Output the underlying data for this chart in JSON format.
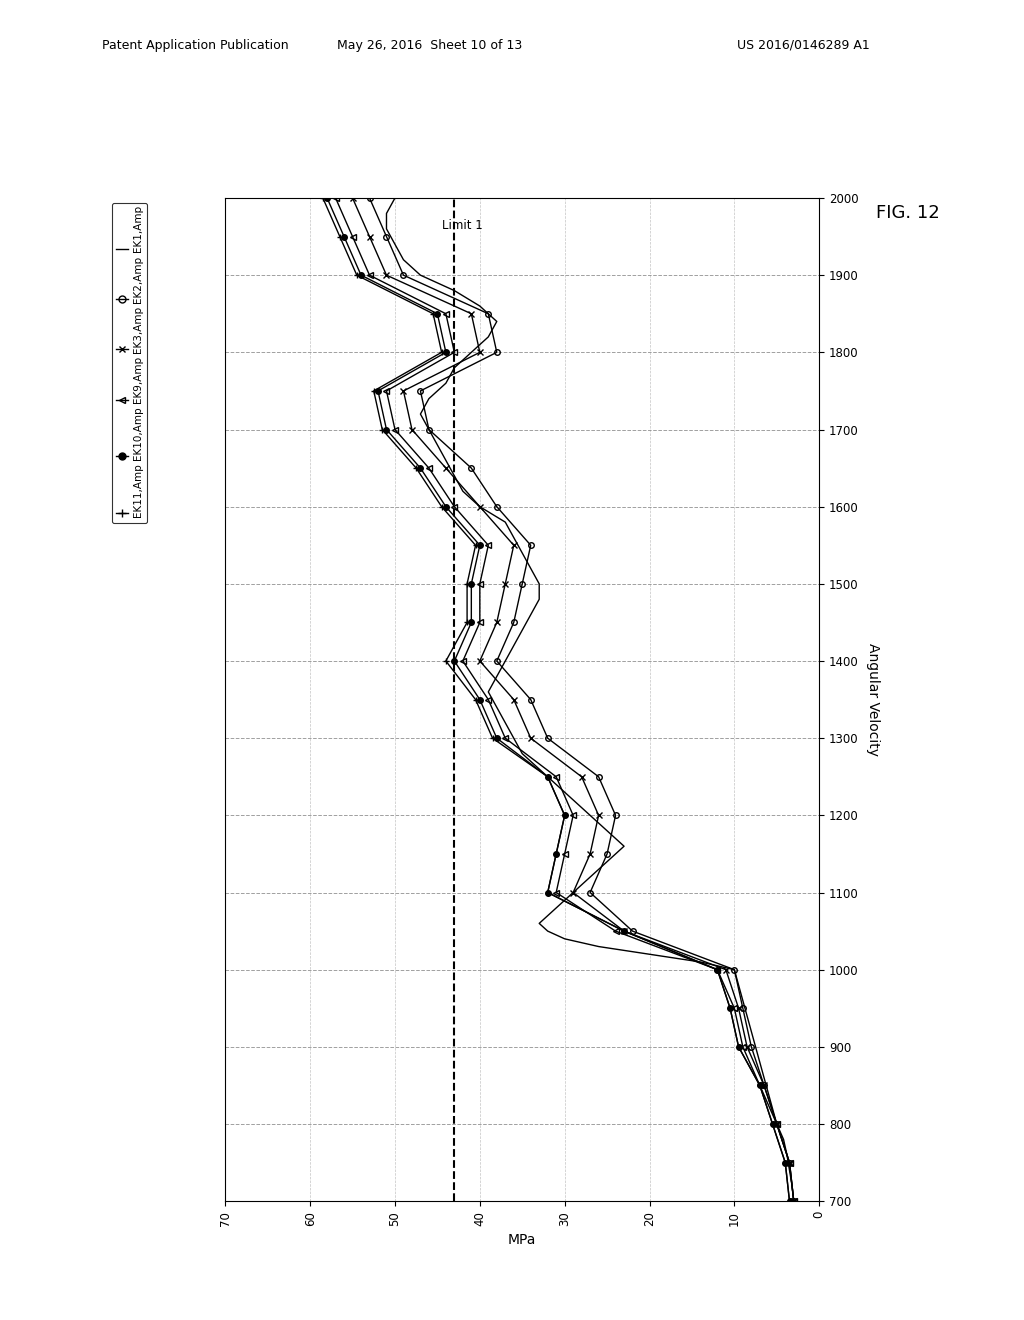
{
  "header1": "Patent Application Publication",
  "header2": "May 26, 2016  Sheet 10 of 13",
  "header3": "US 2016/0146289 A1",
  "fig_label": "FIG. 12",
  "ylabel_label": "MPa",
  "xlabel_label": "Angular Velocity",
  "limit1_val": 43,
  "limit1_text": "Limit 1",
  "ang_vel_ticks": [
    700,
    800,
    900,
    1000,
    1100,
    1200,
    1300,
    1400,
    1500,
    1600,
    1700,
    1800,
    1900,
    2000
  ],
  "mpa_ticks": [
    0,
    10,
    20,
    30,
    40,
    50,
    60,
    70
  ],
  "legend_labels": [
    "EK1,Amp",
    "EK2,Amp",
    "EK3,Amp",
    "EK9,Amp",
    "EK10,Amp",
    "EK11,Amp"
  ],
  "series": [
    {
      "name": "EK1",
      "marker": "none",
      "marker_filled": false,
      "ang_vel": [
        700,
        720,
        740,
        760,
        780,
        800,
        820,
        840,
        860,
        880,
        900,
        920,
        940,
        960,
        980,
        1000,
        1010,
        1020,
        1030,
        1040,
        1050,
        1060,
        1070,
        1080,
        1090,
        1100,
        1110,
        1120,
        1130,
        1140,
        1150,
        1160,
        1170,
        1180,
        1190,
        1200,
        1220,
        1240,
        1260,
        1280,
        1300,
        1320,
        1340,
        1360,
        1380,
        1400,
        1420,
        1440,
        1460,
        1480,
        1500,
        1520,
        1540,
        1560,
        1580,
        1600,
        1620,
        1640,
        1660,
        1680,
        1700,
        1720,
        1740,
        1760,
        1780,
        1800,
        1820,
        1840,
        1860,
        1880,
        1900,
        1920,
        1940,
        1960,
        1980,
        2000
      ],
      "mpa": [
        3,
        3.2,
        3.5,
        3.8,
        4.2,
        5,
        5.5,
        6,
        6.5,
        7,
        7.5,
        8,
        8.5,
        9,
        9.5,
        10,
        14,
        20,
        26,
        30,
        32,
        33,
        32,
        31,
        30,
        29,
        28,
        27,
        26,
        25,
        24,
        23,
        24,
        25,
        26,
        27,
        29,
        31,
        33,
        35,
        36,
        37,
        38,
        39,
        38,
        37,
        36,
        35,
        34,
        33,
        33,
        34,
        35,
        36,
        37,
        40,
        42,
        43,
        44,
        45,
        46,
        47,
        46,
        44,
        43,
        41,
        39,
        38,
        40,
        43,
        47,
        49,
        50,
        51,
        51,
        50
      ]
    },
    {
      "name": "EK2",
      "marker": "o",
      "marker_filled": false,
      "ang_vel": [
        700,
        750,
        800,
        850,
        900,
        950,
        1000,
        1050,
        1100,
        1150,
        1200,
        1250,
        1300,
        1350,
        1400,
        1450,
        1500,
        1550,
        1600,
        1650,
        1700,
        1750,
        1800,
        1850,
        1900,
        1950,
        2000
      ],
      "mpa": [
        3,
        3.5,
        5,
        6.5,
        8,
        9,
        10,
        22,
        27,
        25,
        24,
        26,
        32,
        34,
        38,
        36,
        35,
        34,
        38,
        41,
        46,
        47,
        38,
        39,
        49,
        51,
        53
      ]
    },
    {
      "name": "EK3",
      "marker": "x",
      "marker_filled": false,
      "ang_vel": [
        700,
        750,
        800,
        850,
        900,
        950,
        1000,
        1050,
        1100,
        1150,
        1200,
        1250,
        1300,
        1350,
        1400,
        1450,
        1500,
        1550,
        1600,
        1650,
        1700,
        1750,
        1800,
        1850,
        1900,
        1950,
        2000
      ],
      "mpa": [
        3,
        3.5,
        5,
        6.5,
        8.5,
        9.5,
        11,
        23,
        29,
        27,
        26,
        28,
        34,
        36,
        40,
        38,
        37,
        36,
        40,
        44,
        48,
        49,
        40,
        41,
        51,
        53,
        55
      ]
    },
    {
      "name": "EK9",
      "marker": "<",
      "marker_filled": false,
      "ang_vel": [
        700,
        750,
        800,
        850,
        900,
        950,
        1000,
        1050,
        1100,
        1150,
        1200,
        1250,
        1300,
        1350,
        1400,
        1450,
        1500,
        1550,
        1600,
        1650,
        1700,
        1750,
        1800,
        1850,
        1900,
        1950,
        2000
      ],
      "mpa": [
        3,
        3.5,
        5,
        7,
        9,
        10,
        12,
        24,
        31,
        30,
        29,
        31,
        37,
        39,
        42,
        40,
        40,
        39,
        43,
        46,
        50,
        51,
        43,
        44,
        53,
        55,
        57
      ]
    },
    {
      "name": "EK10",
      "marker": "o",
      "marker_filled": true,
      "ang_vel": [
        700,
        750,
        800,
        850,
        900,
        950,
        1000,
        1050,
        1100,
        1150,
        1200,
        1250,
        1300,
        1350,
        1400,
        1450,
        1500,
        1550,
        1600,
        1650,
        1700,
        1750,
        1800,
        1850,
        1900,
        1950,
        2000
      ],
      "mpa": [
        3.5,
        4,
        5.5,
        7,
        9.5,
        10.5,
        12,
        23,
        32,
        31,
        30,
        32,
        38,
        40,
        43,
        41,
        41,
        40,
        44,
        47,
        51,
        52,
        44,
        45,
        54,
        56,
        58
      ]
    },
    {
      "name": "EK11",
      "marker": "+",
      "marker_filled": false,
      "ang_vel": [
        700,
        750,
        800,
        850,
        900,
        950,
        1000,
        1050,
        1100,
        1150,
        1200,
        1250,
        1300,
        1350,
        1400,
        1450,
        1500,
        1550,
        1600,
        1650,
        1700,
        1750,
        1800,
        1850,
        1900,
        1950,
        2000
      ],
      "mpa": [
        3.5,
        4,
        5.5,
        7,
        9.5,
        10.5,
        12,
        23,
        32,
        31,
        30,
        32,
        38.5,
        40.5,
        44,
        41.5,
        41.5,
        40.5,
        44.5,
        47.5,
        51.5,
        52.5,
        44.5,
        45.5,
        54.5,
        56.5,
        58.5
      ]
    }
  ]
}
